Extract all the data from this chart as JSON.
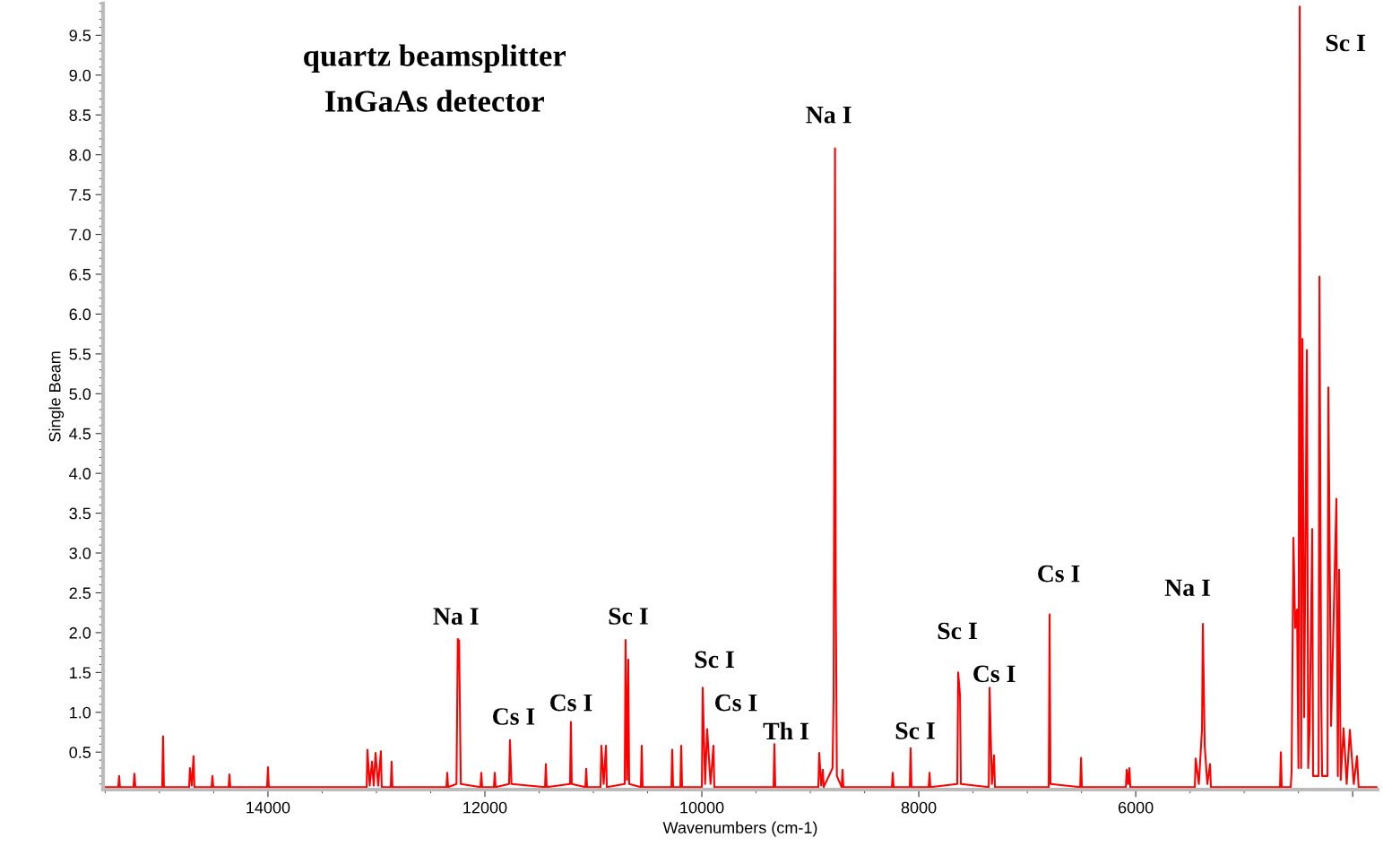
{
  "chart_data": {
    "type": "line",
    "title": "quartz beamsplitter",
    "subtitle": "InGaAs detector",
    "xlabel": "Wavenumbers (cm-1)",
    "ylabel": "Single Beam",
    "x": [
      15510,
      15380,
      15372,
      15364,
      15240,
      15231,
      15222,
      14975,
      14967,
      14959,
      14727,
      14719,
      14702,
      14686,
      14678,
      14520,
      14512,
      14504,
      14363,
      14355,
      14347,
      14008,
      14000,
      13992,
      13090,
      13083,
      13062,
      13041,
      13025,
      13008,
      12984,
      12959,
      12951,
      12868,
      12860,
      12852,
      12355,
      12347,
      12339,
      12262,
      12256,
      12250,
      12238,
      12230,
      12222,
      12041,
      12033,
      12025,
      11917,
      11909,
      11901,
      11777,
      11769,
      11755,
      11446,
      11438,
      11430,
      11215,
      11207,
      11199,
      11074,
      11066,
      11058,
      10934,
      10926,
      10905,
      10884,
      10876,
      10711,
      10703,
      10690,
      10678,
      10670,
      10562,
      10554,
      10546,
      10281,
      10273,
      10265,
      10198,
      10190,
      10182,
      10000,
      9992,
      9970,
      9951,
      9920,
      9893,
      9885,
      9339,
      9331,
      9323,
      8926,
      8918,
      8900,
      8885,
      8877,
      8795,
      8785,
      8772,
      8766,
      8755,
      8711,
      8703,
      8695,
      8248,
      8240,
      8232,
      8083,
      8075,
      8067,
      7909,
      7901,
      7893,
      7645,
      7637,
      7620,
      7612,
      7355,
      7347,
      7326,
      7306,
      7298,
      6802,
      6794,
      6786,
      6512,
      6504,
      6496,
      6091,
      6083,
      6070,
      6058,
      6050,
      5455,
      5447,
      5418,
      5389,
      5381,
      5364,
      5340,
      5315,
      5307,
      4670,
      4662,
      4654,
      4571,
      4563,
      4546,
      4530,
      4513,
      4500,
      4488,
      4475,
      4463,
      4447,
      4422,
      4410,
      4397,
      4373,
      4365,
      4314,
      4306,
      4290,
      4282,
      4232,
      4224,
      4199,
      4150,
      4137,
      4125,
      4110,
      4084,
      4055,
      4026,
      3990,
      3960,
      3945,
      3780
    ],
    "series": [
      {
        "color": "#ff0000",
        "values": [
          0.06,
          0.06,
          0.2,
          0.06,
          0.06,
          0.23,
          0.06,
          0.06,
          0.7,
          0.06,
          0.06,
          0.3,
          0.08,
          0.45,
          0.06,
          0.06,
          0.2,
          0.06,
          0.06,
          0.22,
          0.06,
          0.06,
          0.31,
          0.06,
          0.06,
          0.53,
          0.08,
          0.38,
          0.08,
          0.49,
          0.08,
          0.51,
          0.06,
          0.06,
          0.38,
          0.06,
          0.06,
          0.24,
          0.06,
          0.1,
          0.97,
          1.92,
          1.9,
          1.01,
          0.1,
          0.06,
          0.24,
          0.06,
          0.06,
          0.24,
          0.06,
          0.1,
          0.65,
          0.1,
          0.06,
          0.35,
          0.06,
          0.1,
          0.88,
          0.1,
          0.06,
          0.29,
          0.06,
          0.06,
          0.58,
          0.1,
          0.58,
          0.06,
          0.1,
          1.91,
          0.15,
          1.66,
          0.1,
          0.06,
          0.58,
          0.06,
          0.06,
          0.53,
          0.06,
          0.06,
          0.58,
          0.06,
          0.06,
          1.31,
          0.1,
          0.79,
          0.1,
          0.58,
          0.06,
          0.06,
          0.6,
          0.06,
          0.06,
          0.49,
          0.08,
          0.28,
          0.06,
          0.3,
          1.22,
          8.08,
          2.68,
          0.2,
          0.06,
          0.28,
          0.06,
          0.06,
          0.24,
          0.06,
          0.06,
          0.55,
          0.06,
          0.06,
          0.24,
          0.06,
          0.1,
          1.5,
          1.22,
          0.1,
          0.06,
          1.31,
          0.1,
          0.46,
          0.06,
          0.06,
          2.23,
          0.1,
          0.06,
          0.43,
          0.06,
          0.06,
          0.28,
          0.1,
          0.3,
          0.06,
          0.06,
          0.42,
          0.1,
          0.79,
          2.11,
          0.58,
          0.1,
          0.35,
          0.06,
          0.06,
          0.5,
          0.06,
          0.06,
          0.26,
          3.19,
          2.06,
          2.29,
          0.3,
          9.86,
          0.3,
          5.69,
          0.94,
          5.55,
          0.3,
          0.78,
          3.3,
          0.2,
          0.2,
          6.47,
          1.21,
          0.2,
          0.2,
          5.08,
          0.83,
          3.68,
          0.2,
          2.79,
          0.15,
          0.8,
          0.1,
          0.78,
          0.1,
          0.45,
          0.06,
          0.06
        ]
      }
    ],
    "xlim": [
      15520,
      3770
    ],
    "ylim": [
      0.03,
      9.9
    ],
    "xticks": [
      14000,
      12000,
      10000,
      8000,
      6000,
      {
        "value": 4000,
        "label": null
      }
    ],
    "yticks": [
      {
        "value": 0.5,
        "label": "0.5"
      },
      {
        "value": 1.0,
        "label": "1.0"
      },
      {
        "value": 1.5,
        "label": "1.5"
      },
      {
        "value": 2.0,
        "label": "2.0"
      },
      {
        "value": 2.5,
        "label": "2.5"
      },
      {
        "value": 3.0,
        "label": "3.0"
      },
      {
        "value": 3.5,
        "label": "3.5"
      },
      {
        "value": 4.0,
        "label": "4.0"
      },
      {
        "value": 4.5,
        "label": "4.5"
      },
      {
        "value": 5.0,
        "label": "5.0"
      },
      {
        "value": 5.5,
        "label": "5.5"
      },
      {
        "value": 6.0,
        "label": "6.0"
      },
      {
        "value": 6.5,
        "label": "6.5"
      },
      {
        "value": 7.0,
        "label": "7.0"
      },
      {
        "value": 7.5,
        "label": "7.5"
      },
      {
        "value": 8.0,
        "label": "8.0"
      },
      {
        "value": 8.5,
        "label": "8.5"
      },
      {
        "value": 9.0,
        "label": "9.0"
      },
      {
        "value": 9.5,
        "label": "9.5"
      }
    ],
    "grid": false,
    "legend": false,
    "annotations": [
      {
        "text": "Na I",
        "x": 12250,
        "y": 1.92
      },
      {
        "text": "Cs I",
        "x": 11769,
        "y": 0.65
      },
      {
        "text": "Cs I",
        "x": 11207,
        "y": 0.88
      },
      {
        "text": "Sc I",
        "x": 10703,
        "y": 1.91
      },
      {
        "text": "Sc I",
        "x": 9992,
        "y": 1.31
      },
      {
        "text": "Cs I",
        "x": 9951,
        "y": 0.79
      },
      {
        "text": "Th I",
        "x": 9331,
        "y": 0.6
      },
      {
        "text": "Na I",
        "x": 8772,
        "y": 8.08
      },
      {
        "text": "Sc I",
        "x": 8075,
        "y": 0.55
      },
      {
        "text": "Sc I",
        "x": 7637,
        "y": 1.5
      },
      {
        "text": "Cs I",
        "x": 7347,
        "y": 1.31
      },
      {
        "text": "Cs I",
        "x": 6794,
        "y": 2.23
      },
      {
        "text": "Na I",
        "x": 5381,
        "y": 2.11
      },
      {
        "text": "Sc I",
        "x": 4488,
        "y": 9.86
      }
    ]
  }
}
